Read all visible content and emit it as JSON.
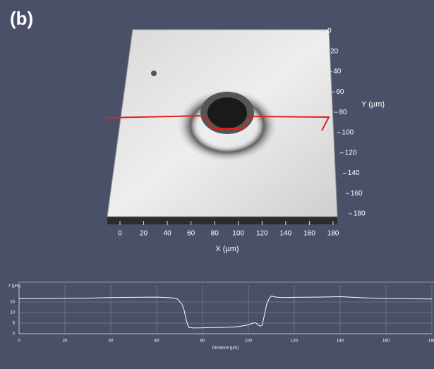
{
  "panel_label": "(b)",
  "chart_data": [
    {
      "type": "surface",
      "xlabel": "X (µm)",
      "ylabel": "Y (µm)",
      "xlim": [
        0,
        180
      ],
      "ylim": [
        0,
        180
      ],
      "xticks": [
        0,
        20,
        40,
        60,
        80,
        100,
        120,
        140,
        160,
        180
      ],
      "yticks": [
        0,
        20,
        40,
        60,
        80,
        100,
        120,
        140,
        160,
        180
      ]
    },
    {
      "type": "line",
      "ylabel": "z (µm)",
      "xlabel": "Distance (µm)",
      "color": "#ffffff",
      "x": [
        0,
        10,
        20,
        30,
        40,
        50,
        60,
        66,
        69,
        71,
        72,
        73,
        74,
        76,
        80,
        85,
        90,
        95,
        98,
        100,
        102,
        103,
        104,
        105,
        106,
        107,
        108,
        109,
        110,
        112,
        115,
        120,
        130,
        140,
        150,
        160,
        170,
        180
      ],
      "values": [
        16.5,
        16.6,
        16.7,
        16.8,
        17.1,
        17.2,
        17.3,
        17.0,
        16.5,
        14,
        11,
        6,
        3,
        2.7,
        2.8,
        2.9,
        3,
        3.3,
        3.8,
        4.2,
        5,
        5.2,
        4.5,
        3.6,
        4,
        9,
        14,
        16.5,
        17.8,
        17.3,
        17.1,
        17.2,
        17.3,
        17.5,
        17,
        16.6,
        16.5,
        16.4
      ],
      "xlim": [
        0,
        180
      ],
      "ylim": [
        0,
        23
      ],
      "xticks": [
        0,
        20,
        40,
        60,
        80,
        100,
        120,
        140,
        160,
        180
      ],
      "yticks": [
        0,
        5,
        10,
        15
      ],
      "grid": true
    }
  ]
}
